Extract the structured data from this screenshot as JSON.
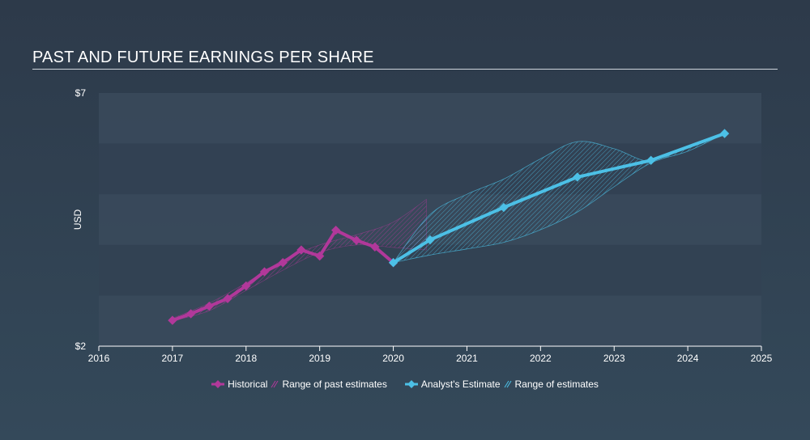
{
  "title": "PAST AND FUTURE EARNINGS PER SHARE",
  "colors": {
    "historical": "#b1389a",
    "estimate": "#4cc0e6",
    "band_light": "#3a4a5c",
    "band_dark": "#324253",
    "axis": "#ffffff"
  },
  "legend": {
    "historical": "Historical",
    "past_range": "Range of past estimates",
    "estimate": "Analyst's Estimate",
    "future_range": "Range of estimates"
  },
  "chart_data": {
    "type": "line",
    "ylabel": "USD",
    "y_ticks": [
      "$7",
      "$2"
    ],
    "ylim": [
      2,
      7
    ],
    "xlim": [
      2016,
      2025
    ],
    "x_ticks": [
      "2016",
      "2017",
      "2018",
      "2019",
      "2020",
      "2021",
      "2022",
      "2023",
      "2024",
      "2025"
    ],
    "grid": "horizontal bands",
    "legend_position": "bottom",
    "series": [
      {
        "name": "Historical",
        "x": [
          2017.0,
          2017.25,
          2017.5,
          2017.75,
          2018.0,
          2018.25,
          2018.5,
          2018.75,
          2019.0,
          2019.22,
          2019.5,
          2019.75,
          2020.0
        ],
        "values": [
          2.51,
          2.64,
          2.79,
          2.94,
          3.19,
          3.47,
          3.65,
          3.9,
          3.78,
          4.29,
          4.09,
          3.96,
          3.65
        ]
      },
      {
        "name": "Analyst's Estimate",
        "x": [
          2020.0,
          2020.5,
          2021.5,
          2022.5,
          2023.5,
          2024.5
        ],
        "values": [
          3.65,
          4.1,
          4.74,
          5.34,
          5.67,
          6.2
        ]
      }
    ],
    "past_estimate_range": {
      "name": "Range of past estimates",
      "x": [
        2017.0,
        2017.5,
        2018.0,
        2018.5,
        2019.0,
        2019.5,
        2020.0,
        2020.45
      ],
      "low": [
        2.5,
        2.7,
        3.1,
        3.5,
        3.85,
        4.0,
        3.95,
        3.9
      ],
      "high": [
        2.55,
        2.85,
        3.25,
        3.7,
        4.0,
        4.2,
        4.45,
        4.9
      ]
    },
    "future_estimate_range": {
      "name": "Range of estimates",
      "x": [
        2020.0,
        2020.5,
        2021.0,
        2021.5,
        2022.0,
        2022.5,
        2023.0,
        2023.5,
        2024.0,
        2024.5
      ],
      "low": [
        3.65,
        3.8,
        3.92,
        4.05,
        4.3,
        4.65,
        5.15,
        5.62,
        5.85,
        6.2
      ],
      "high": [
        3.65,
        4.6,
        5.0,
        5.3,
        5.7,
        6.04,
        5.9,
        5.65,
        5.95,
        6.2
      ]
    }
  }
}
